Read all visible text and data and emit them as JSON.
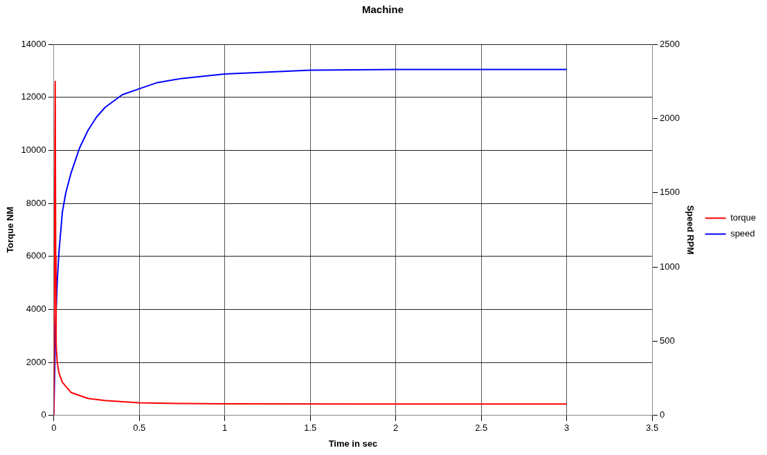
{
  "chart_data": {
    "type": "line",
    "title": "Machine",
    "xlabel": "Time in sec",
    "ylabel": "Torque NM",
    "y2label": "Speed RPM",
    "xlim": [
      0,
      3.5
    ],
    "xticks": [
      0,
      0.5,
      1,
      1.5,
      2,
      2.5,
      3,
      3.5
    ],
    "ylim": [
      0,
      14000
    ],
    "yticks": [
      0,
      2000,
      4000,
      6000,
      8000,
      10000,
      12000,
      14000
    ],
    "y2lim": [
      0,
      2500
    ],
    "y2ticks": [
      0,
      500,
      1000,
      1500,
      2000,
      2500
    ],
    "grid": true,
    "legend": "right",
    "marker": "none",
    "line_style": "solid",
    "series": [
      {
        "name": "torque",
        "color": "#ff0000",
        "x": [
          0,
          0.008,
          0.011,
          0.013,
          0.015,
          0.02,
          0.03,
          0.05,
          0.1,
          0.2,
          0.3,
          0.5,
          0.75,
          1,
          2,
          3
        ],
        "values": [
          0,
          12600,
          6000,
          2800,
          2500,
          2000,
          1600,
          1250,
          870,
          640,
          560,
          480,
          450,
          440,
          430,
          430
        ]
      },
      {
        "name": "speed",
        "color": "#0000ff",
        "axis": "y2",
        "x": [
          0,
          0.01,
          0.02,
          0.03,
          0.05,
          0.07,
          0.1,
          0.15,
          0.2,
          0.25,
          0.3,
          0.4,
          0.5,
          0.6,
          0.75,
          1,
          1.5,
          2,
          3
        ],
        "values": [
          0,
          600,
          900,
          1100,
          1370,
          1500,
          1630,
          1800,
          1920,
          2010,
          2075,
          2160,
          2200,
          2240,
          2270,
          2300,
          2325,
          2330,
          2330
        ]
      }
    ]
  }
}
